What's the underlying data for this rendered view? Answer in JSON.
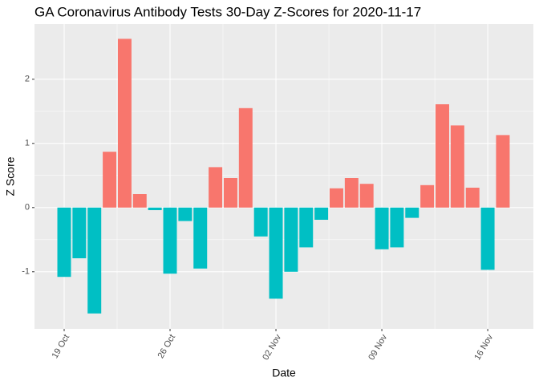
{
  "chart_data": {
    "type": "bar",
    "title": "GA Coronavirus Antibody Tests 30-Day Z-Scores for 2020-11-17",
    "x_label": "Date",
    "y_label": "Z Score",
    "categories": [
      "19 Oct",
      null,
      null,
      null,
      null,
      null,
      null,
      "26 Oct",
      null,
      null,
      null,
      null,
      null,
      null,
      "02 Nov",
      null,
      null,
      null,
      null,
      null,
      null,
      "09 Nov",
      null,
      null,
      null,
      null,
      null,
      null,
      "16 Nov",
      null
    ],
    "values": [
      -1.08,
      -0.79,
      -1.65,
      0.87,
      2.63,
      0.21,
      -0.04,
      -1.03,
      -0.21,
      -0.95,
      0.63,
      0.46,
      1.55,
      -0.45,
      -1.42,
      -1.0,
      -0.62,
      -0.19,
      0.3,
      0.46,
      0.37,
      -0.65,
      -0.62,
      -0.16,
      0.35,
      1.61,
      1.28,
      0.31,
      -0.97,
      1.13
    ],
    "positive_color": "#F8766D",
    "negative_color": "#00BFC4",
    "ylim": [
      -1.89,
      2.86
    ],
    "yticks": [
      -1,
      0,
      1,
      2
    ],
    "grid": true
  }
}
